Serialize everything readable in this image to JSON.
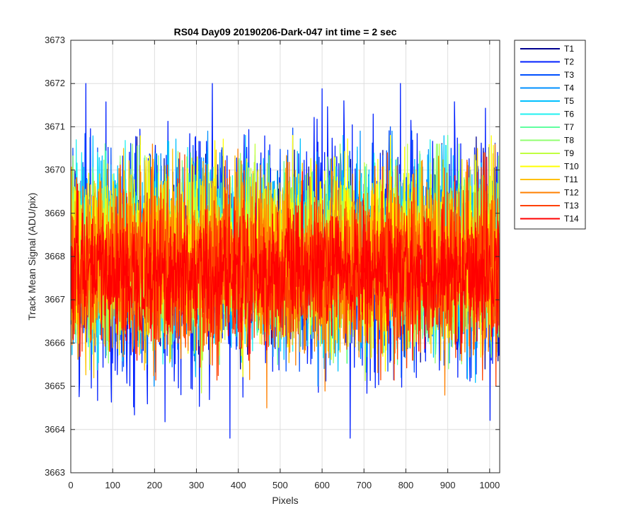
{
  "chart_data": {
    "type": "line",
    "title": "RS04 Day09 20190206-Dark-047 int time = 2 sec",
    "xlabel": "Pixels",
    "ylabel": "Track Mean Signal (ADU/pix)",
    "xlim": [
      0,
      1024
    ],
    "ylim": [
      3663,
      3673
    ],
    "xticks": [
      0,
      100,
      200,
      300,
      400,
      500,
      600,
      700,
      800,
      900,
      1000
    ],
    "yticks": [
      3663,
      3664,
      3665,
      3666,
      3667,
      3668,
      3669,
      3670,
      3671,
      3672,
      3673
    ],
    "grid": true,
    "legend_position": "outside-top-right",
    "x_range": [
      1,
      1024
    ],
    "series": [
      {
        "name": "T1",
        "color": "#00008f",
        "approx_mean": 3668.0,
        "approx_range": [
          3665.4,
          3671.2
        ]
      },
      {
        "name": "T2",
        "color": "#0020ff",
        "approx_mean": 3668.0,
        "approx_range": [
          3663.8,
          3672.0
        ]
      },
      {
        "name": "T3",
        "color": "#0050ff",
        "approx_mean": 3668.0,
        "approx_range": [
          3665.2,
          3671.0
        ]
      },
      {
        "name": "T4",
        "color": "#0090ff",
        "approx_mean": 3668.0,
        "approx_range": [
          3665.0,
          3670.9
        ]
      },
      {
        "name": "T5",
        "color": "#00c0ff",
        "approx_mean": 3668.0,
        "approx_range": [
          3664.6,
          3670.8
        ]
      },
      {
        "name": "T6",
        "color": "#20f0f0",
        "approx_mean": 3668.0,
        "approx_range": [
          3665.3,
          3670.7
        ]
      },
      {
        "name": "T7",
        "color": "#60ffa0",
        "approx_mean": 3668.0,
        "approx_range": [
          3665.5,
          3671.7
        ]
      },
      {
        "name": "T8",
        "color": "#90ff70",
        "approx_mean": 3668.0,
        "approx_range": [
          3664.4,
          3670.6
        ]
      },
      {
        "name": "T9",
        "color": "#c0ff40",
        "approx_mean": 3668.0,
        "approx_range": [
          3664.2,
          3670.6
        ]
      },
      {
        "name": "T10",
        "color": "#ffff00",
        "approx_mean": 3668.0,
        "approx_range": [
          3664.9,
          3670.8
        ]
      },
      {
        "name": "T11",
        "color": "#ffc000",
        "approx_mean": 3667.9,
        "approx_range": [
          3664.5,
          3670.5
        ]
      },
      {
        "name": "T12",
        "color": "#ff8000",
        "approx_mean": 3667.8,
        "approx_range": [
          3664.5,
          3670.6
        ]
      },
      {
        "name": "T13",
        "color": "#ff4000",
        "approx_mean": 3667.7,
        "approx_range": [
          3664.4,
          3670.4
        ]
      },
      {
        "name": "T14",
        "color": "#ff0000",
        "approx_mean": 3667.6,
        "approx_range": [
          3665.6,
          3670.3
        ]
      }
    ]
  }
}
